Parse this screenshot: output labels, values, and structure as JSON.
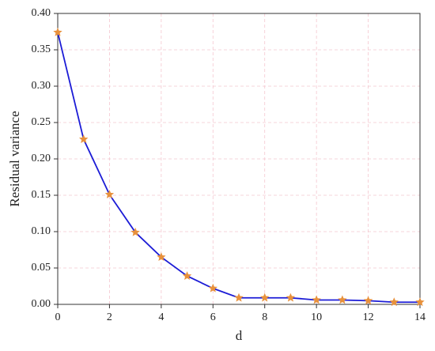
{
  "chart_data": {
    "type": "line",
    "x_label": "d",
    "y_label": "Residual variance",
    "x": [
      0,
      1,
      2,
      3,
      4,
      5,
      6,
      7,
      8,
      9,
      10,
      11,
      12,
      13,
      14
    ],
    "series": [
      {
        "color": "#1c1cd6",
        "marker_color": "#e8913c",
        "values": [
          0.374,
          0.227,
          0.151,
          0.099,
          0.065,
          0.039,
          0.022,
          0.009,
          0.009,
          0.009,
          0.006,
          0.006,
          0.005,
          0.003,
          0.003
        ]
      }
    ],
    "xlim": [
      0,
      14
    ],
    "xticks": [
      0,
      2,
      4,
      6,
      8,
      10,
      12,
      14
    ],
    "ylim": [
      0,
      0.4
    ],
    "yticks": [
      {
        "value": 0,
        "label": "0.00"
      },
      {
        "value": 0.05,
        "label": "0.05"
      },
      {
        "value": 0.1,
        "label": "0.10"
      },
      {
        "value": 0.15,
        "label": "0.15"
      },
      {
        "value": 0.2,
        "label": "0.20"
      },
      {
        "value": 0.25,
        "label": "0.25"
      },
      {
        "value": 0.3,
        "label": "0.30"
      },
      {
        "value": 0.35,
        "label": "0.35"
      },
      {
        "value": 0.4,
        "label": "0.40"
      }
    ],
    "grid": true
  }
}
